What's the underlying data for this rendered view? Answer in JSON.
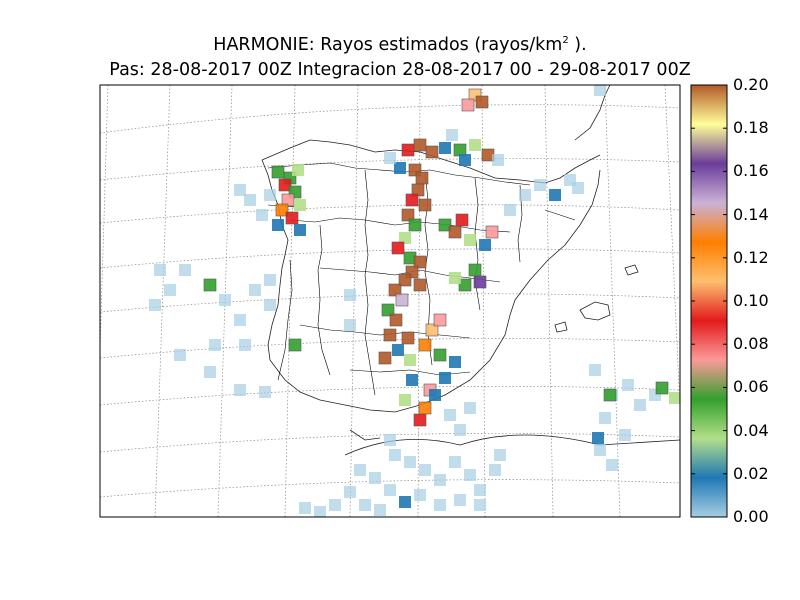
{
  "title": {
    "line1_prefix": "HARMONIE: Rayos estimados  (rayos/km",
    "line1_sup": "2",
    "line1_suffix": " ).",
    "line2": "Pas: 28-08-2017 00Z Integracion 28-08-2017 00 - 29-08-2017 00Z"
  },
  "colorbar": {
    "min": 0.0,
    "max": 0.2,
    "tick_labels": [
      "0.00",
      "0.02",
      "0.04",
      "0.06",
      "0.08",
      "0.10",
      "0.12",
      "0.14",
      "0.16",
      "0.18",
      "0.20"
    ],
    "colors": [
      "#a6cee3",
      "#1f78b4",
      "#b2df8a",
      "#33a02c",
      "#fb9a99",
      "#e31a1c",
      "#fdbf6f",
      "#ff7f00",
      "#cab2d6",
      "#6a3d9a",
      "#ffff99",
      "#b15928"
    ]
  },
  "map_colors": {
    "border": "#000000",
    "graticule": "#888888",
    "coastline": "#222222"
  }
}
